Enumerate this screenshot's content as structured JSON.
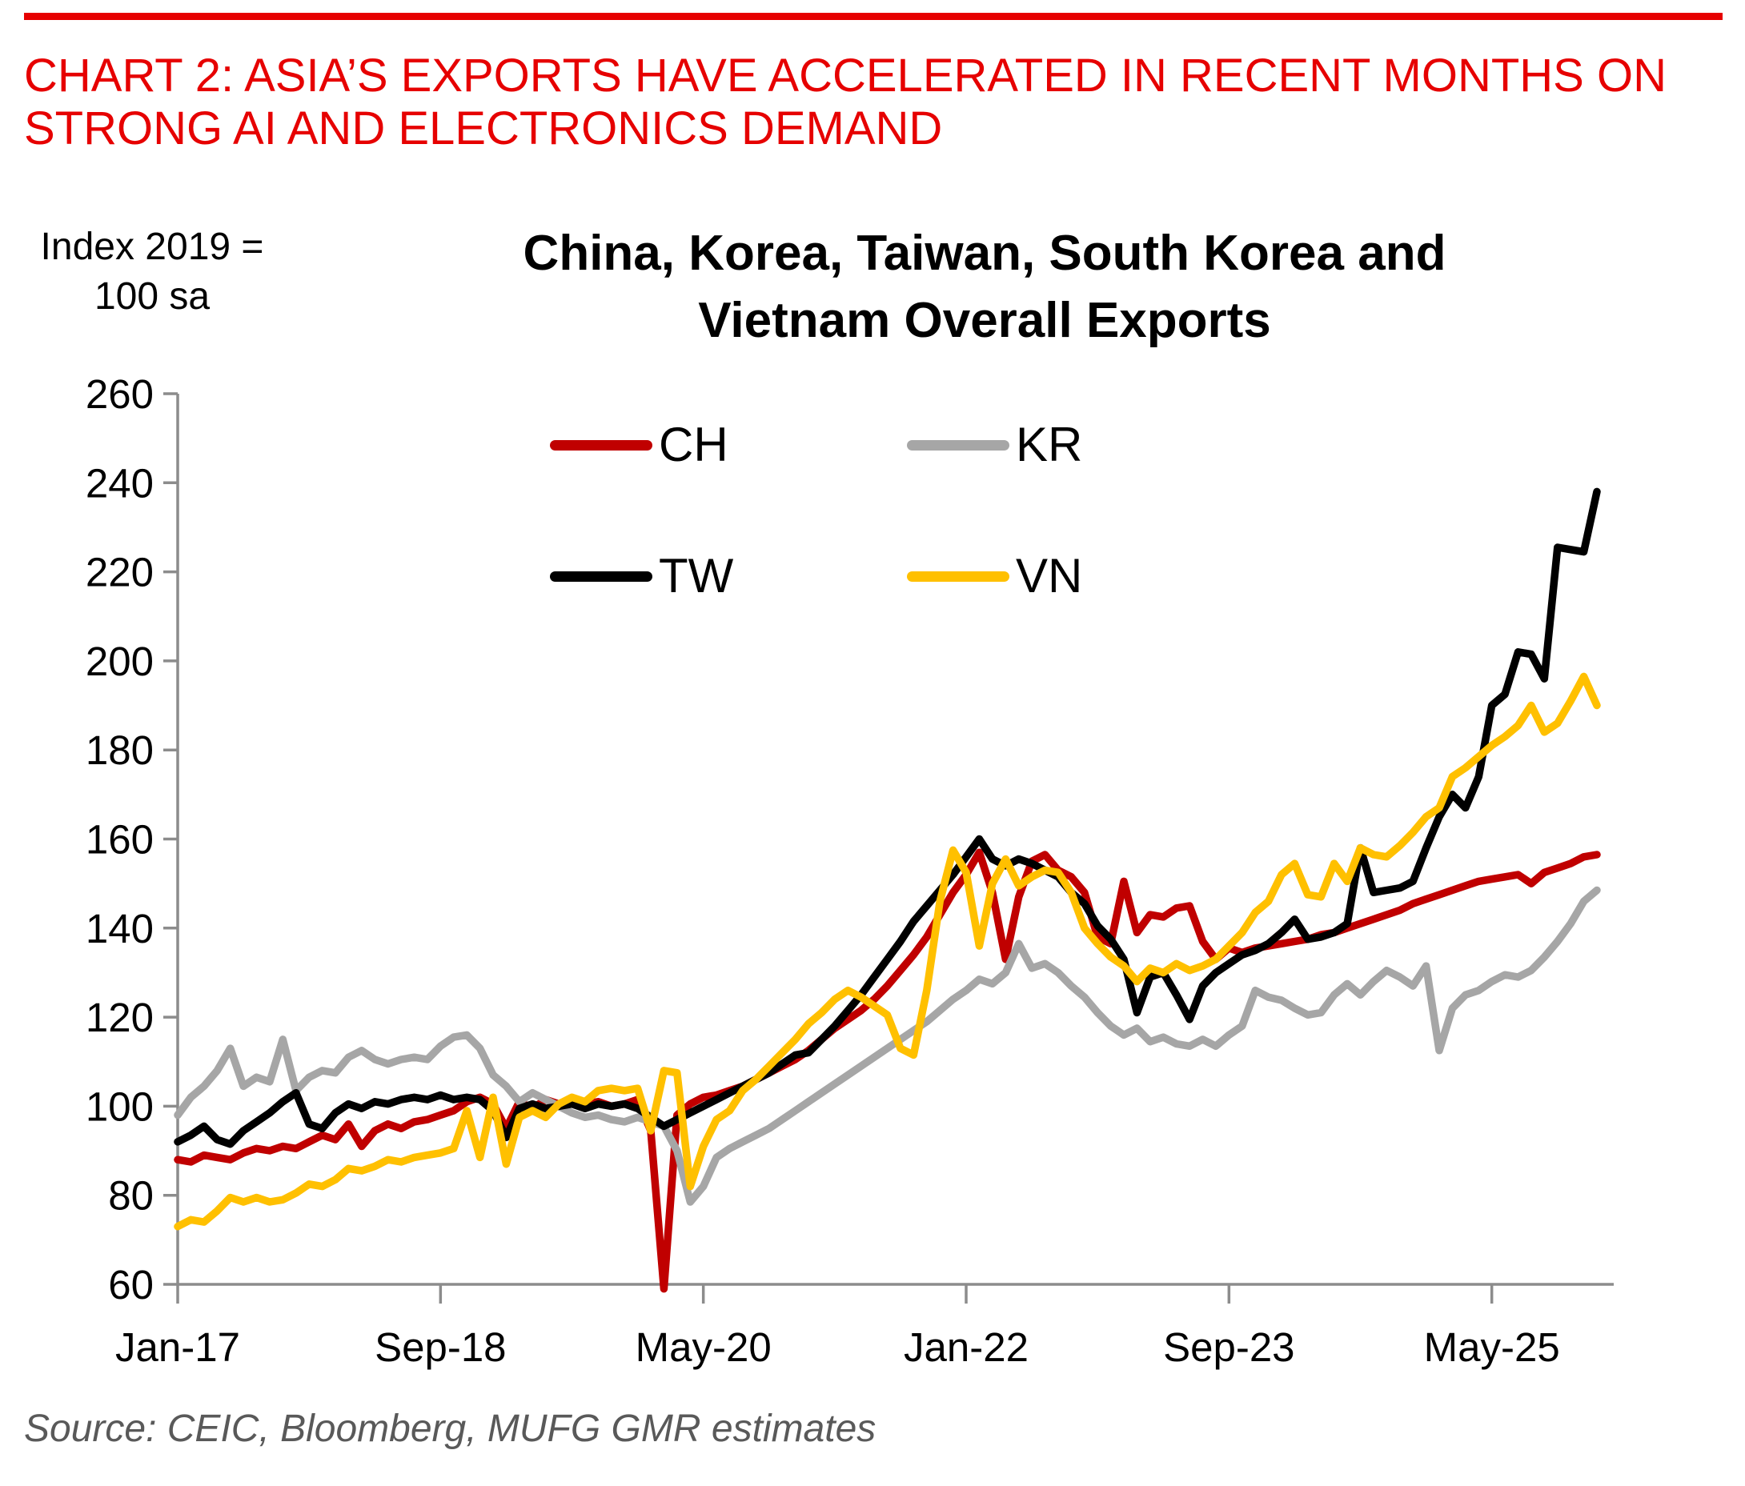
{
  "header": {
    "title_line1": "CHART 2: ASIA’S EXPORTS HAVE ACCELERATED IN RECENT MONTHS ON",
    "title_line2": "STRONG AI AND ELECTRONICS DEMAND",
    "accent_color": "#E60000"
  },
  "axis_note": {
    "line1": "Index 2019 =",
    "line2": "100 sa"
  },
  "chart_title": {
    "line1": "China, Korea, Taiwan, South Korea and",
    "line2": "Vietnam Overall Exports"
  },
  "legend": {
    "items": [
      {
        "id": "CH",
        "label": "CH",
        "color": "#C00000"
      },
      {
        "id": "KR",
        "label": "KR",
        "color": "#A6A6A6"
      },
      {
        "id": "TW",
        "label": "TW",
        "color": "#000000"
      },
      {
        "id": "VN",
        "label": "VN",
        "color": "#FFC000"
      }
    ]
  },
  "source": {
    "text": "Source: CEIC, Bloomberg, MUFG GMR estimates"
  },
  "chart_data": {
    "type": "line",
    "title": "China, Korea, Taiwan, South Korea and Vietnam Overall Exports",
    "y_axis_label": "Index 2019 = 100 sa",
    "xlabel": "",
    "ylabel": "",
    "ylim": [
      60,
      260
    ],
    "grid": false,
    "legend_position": "top-center",
    "axis_color": "#8C8C8C",
    "x_start": "Jan-17",
    "x_end": "Jan-26",
    "months_count": 109,
    "x_ticks": [
      {
        "index": 0,
        "label": "Jan-17"
      },
      {
        "index": 20,
        "label": "Sep-18"
      },
      {
        "index": 40,
        "label": "May-20"
      },
      {
        "index": 60,
        "label": "Jan-22"
      },
      {
        "index": 80,
        "label": "Sep-23"
      },
      {
        "index": 100,
        "label": "May-25"
      }
    ],
    "y_ticks": [
      60,
      80,
      100,
      120,
      140,
      160,
      180,
      200,
      220,
      240,
      260
    ],
    "series": [
      {
        "name": "CH",
        "color": "#C00000",
        "values": [
          88,
          87.5,
          89,
          88.5,
          88,
          89.5,
          90.5,
          90,
          91,
          90.5,
          92,
          93.5,
          92.5,
          96,
          91,
          94.5,
          96,
          95,
          96.5,
          97,
          98,
          99,
          101,
          102,
          100.5,
          95,
          101,
          99.5,
          101.5,
          100.5,
          101,
          100.5,
          101,
          100,
          100.5,
          101.5,
          94.5,
          59,
          98,
          100.5,
          102,
          102.5,
          103.5,
          104.5,
          106,
          107.5,
          109,
          110.5,
          112.5,
          115,
          117.5,
          119.5,
          121.5,
          124,
          127,
          130.5,
          134,
          138,
          143,
          148,
          152,
          157,
          148,
          133,
          147,
          155,
          156.5,
          153,
          151.5,
          148,
          138,
          136.5,
          150.5,
          139,
          143,
          142.5,
          144.5,
          145,
          137,
          133,
          135.5,
          134.5,
          135.5,
          136,
          136.5,
          137,
          137.5,
          138.5,
          139,
          140,
          141,
          142,
          143,
          144,
          145.5,
          146.5,
          147.5,
          148.5,
          149.5,
          150.5,
          151,
          151.5,
          152,
          150,
          152.5,
          153.5,
          154.5,
          156,
          156.5
        ]
      },
      {
        "name": "KR",
        "color": "#A6A6A6",
        "values": [
          98,
          102,
          104.5,
          108,
          113,
          104.5,
          106.5,
          105.5,
          115,
          103.5,
          106.5,
          108,
          107.5,
          111,
          112.5,
          110.5,
          109.5,
          110.5,
          111,
          110.5,
          113.5,
          115.5,
          116,
          113,
          107,
          104.5,
          101,
          103,
          101.5,
          100,
          98.5,
          97.5,
          98,
          97,
          96.5,
          97.5,
          96.5,
          95.5,
          90,
          78.5,
          82,
          88.5,
          90.5,
          92,
          93.5,
          95,
          97,
          99,
          101,
          103,
          105,
          107,
          109,
          111,
          113,
          115,
          117,
          119,
          121.5,
          124,
          126,
          128.5,
          127.5,
          130,
          136.5,
          131,
          132,
          130,
          127,
          124.5,
          121,
          118,
          116,
          117.5,
          114.5,
          115.5,
          114,
          113.5,
          115,
          113.5,
          116,
          118,
          126,
          124.5,
          123.8,
          122,
          120.5,
          121,
          125,
          127.5,
          125,
          128,
          130.5,
          129,
          127,
          131.5,
          112.5,
          122,
          125,
          126,
          128,
          129.5,
          129,
          130.5,
          133.5,
          137,
          141,
          146,
          148.5
        ]
      },
      {
        "name": "TW",
        "color": "#000000",
        "values": [
          92,
          93.5,
          95.5,
          92.5,
          91.5,
          94.5,
          96.5,
          98.5,
          101,
          103,
          96,
          95,
          98.5,
          100.5,
          99.5,
          101,
          100.5,
          101.5,
          102,
          101.5,
          102.5,
          101.5,
          102,
          101.5,
          99,
          93,
          99.5,
          100.5,
          99.5,
          100,
          100.5,
          99.5,
          100.5,
          100,
          100.5,
          99.5,
          97.5,
          95.5,
          97,
          98.5,
          100,
          101.5,
          103,
          104.5,
          106,
          107.5,
          109.5,
          111.5,
          112,
          115,
          118,
          121.5,
          125,
          129,
          133,
          137,
          141.5,
          145,
          148.5,
          152,
          156,
          160,
          155.5,
          154,
          155.5,
          154.5,
          153,
          151.5,
          148,
          145.5,
          140.5,
          137.5,
          133,
          121,
          129,
          130,
          125,
          119.5,
          127,
          130,
          132,
          134,
          135,
          136.5,
          139,
          142,
          137.5,
          138,
          139,
          141,
          158,
          148,
          148.5,
          149,
          150.5,
          158,
          165,
          170,
          167,
          174,
          190,
          192.5,
          202,
          201.5,
          196,
          225.5,
          225,
          224.5,
          238
        ]
      },
      {
        "name": "VN",
        "color": "#FFC000",
        "values": [
          73,
          74.5,
          74,
          76.5,
          79.5,
          78.5,
          79.5,
          78.5,
          79,
          80.5,
          82.5,
          82,
          83.5,
          86,
          85.5,
          86.5,
          88,
          87.5,
          88.5,
          89,
          89.5,
          90.5,
          99,
          88.5,
          102,
          87,
          97.5,
          99,
          97.5,
          100.5,
          102,
          101,
          103.5,
          104,
          103.5,
          104,
          94.5,
          108,
          107.5,
          82,
          91,
          97,
          99,
          103.5,
          106,
          109,
          112,
          115,
          118.5,
          121,
          124,
          126,
          124.5,
          122.5,
          120.5,
          113,
          111.5,
          126,
          146,
          157.5,
          152.5,
          136,
          150,
          155.5,
          149.5,
          151.5,
          153,
          152.5,
          148,
          140,
          136.5,
          133.5,
          131.5,
          128,
          131,
          130,
          132,
          130.5,
          131.5,
          133,
          136,
          139,
          143.5,
          146,
          152,
          154.5,
          147.5,
          147,
          154.5,
          150.5,
          158,
          156.5,
          156,
          158.5,
          161.5,
          165,
          167,
          174,
          176,
          178.5,
          181,
          183,
          185.5,
          190,
          184,
          186,
          191,
          196.5,
          190
        ]
      }
    ]
  }
}
